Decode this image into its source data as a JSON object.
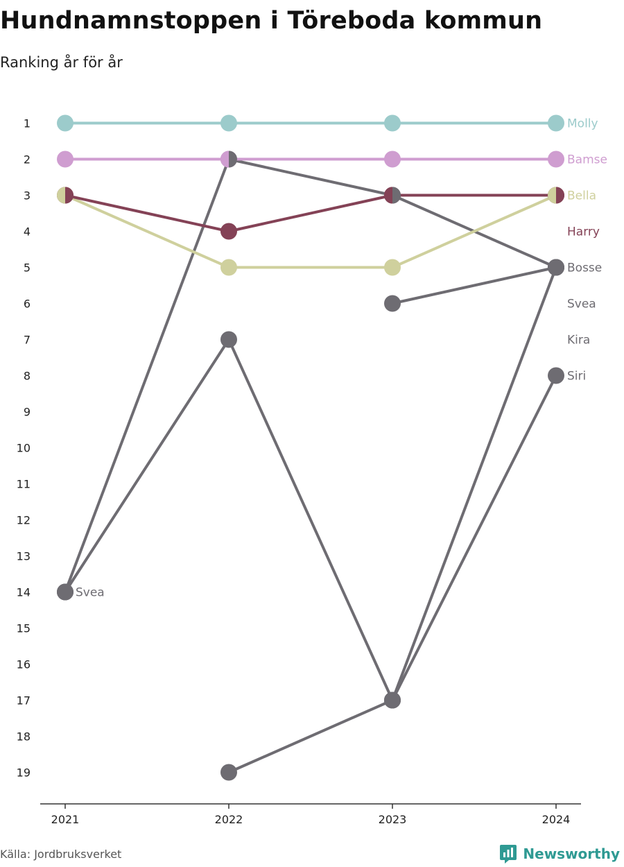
{
  "header": {
    "title": "Hundnamnstoppen i Töreboda kommun",
    "subtitle": "Ranking år för år"
  },
  "footer": {
    "source": "Källa: Jordbruksverket",
    "brand": "Newsworthy"
  },
  "colors": {
    "Molly": "#9ccbcb",
    "Bamse": "#cf9dd0",
    "Bella": "#cfd09d",
    "Harry": "#844256",
    "other": "#6e6c72",
    "axis": "#333333",
    "brand": "#2f9a93"
  },
  "chart_data": {
    "type": "line",
    "x": [
      "2021",
      "2022",
      "2023",
      "2024"
    ],
    "y_ticks": [
      "1",
      "2",
      "3",
      "4",
      "5",
      "6",
      "7",
      "8",
      "9",
      "10",
      "11",
      "12",
      "13",
      "14",
      "15",
      "16",
      "17",
      "18",
      "19"
    ],
    "ylim": [
      1,
      19
    ],
    "y_reversed": true,
    "series": [
      {
        "name": "Molly",
        "values": [
          1,
          1,
          1,
          1
        ]
      },
      {
        "name": "Bamse",
        "values": [
          2,
          2,
          2,
          2
        ]
      },
      {
        "name": "Bella",
        "values": [
          3,
          5,
          5,
          3
        ]
      },
      {
        "name": "Harry",
        "values": [
          3,
          4,
          3,
          3
        ]
      },
      {
        "name": "Bosse",
        "values": [
          14,
          2,
          3,
          5
        ]
      },
      {
        "name": "Svea",
        "values": [
          14,
          7,
          17,
          5
        ]
      },
      {
        "name": "Kira",
        "values": [
          null,
          null,
          6,
          5
        ]
      },
      {
        "name": "Siri",
        "values": [
          null,
          19,
          17,
          8
        ]
      }
    ],
    "end_labels": [
      {
        "text": "Molly",
        "rank": 1,
        "color": "Molly"
      },
      {
        "text": "Bamse",
        "rank": 2,
        "color": "Bamse"
      },
      {
        "text": "Bella",
        "rank": 3,
        "color": "Bella"
      },
      {
        "text": "Harry",
        "rank": 4,
        "color": "Harry"
      },
      {
        "text": "Bosse",
        "rank": 5,
        "color": "other"
      },
      {
        "text": "Svea",
        "rank": 6,
        "color": "other"
      },
      {
        "text": "Kira",
        "rank": 7,
        "color": "other"
      },
      {
        "text": "Siri",
        "rank": 8,
        "color": "other"
      }
    ],
    "annotations": [
      {
        "text": "Svea",
        "x": "2021",
        "rank": 14
      }
    ]
  }
}
